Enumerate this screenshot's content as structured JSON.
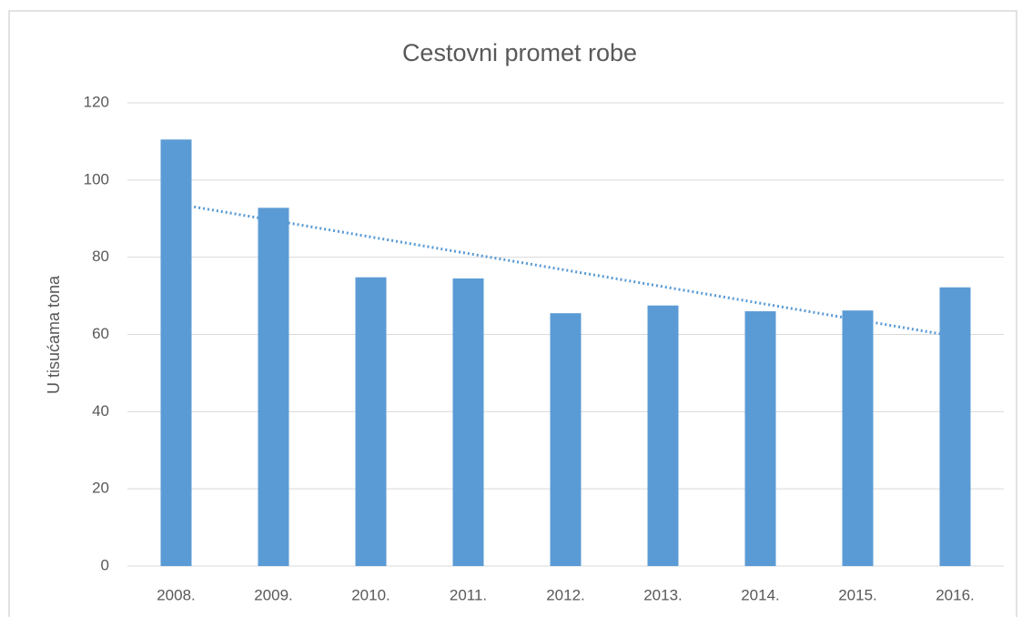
{
  "chart_data": {
    "type": "bar",
    "title": "Cestovni promet robe",
    "y_label": "U tisućama tona",
    "categories": [
      "2008.",
      "2009.",
      "2010.",
      "2011.",
      "2012.",
      "2013.",
      "2014.",
      "2015.",
      "2016."
    ],
    "values": [
      110.5,
      92.8,
      74.8,
      74.5,
      65.5,
      67.5,
      66,
      66.2,
      72.2
    ],
    "color": "#5b9bd5",
    "trendline": "linear",
    "ylim": [
      0,
      120
    ],
    "yticks": [
      0,
      20,
      40,
      60,
      80,
      100,
      120
    ],
    "grid": true
  }
}
